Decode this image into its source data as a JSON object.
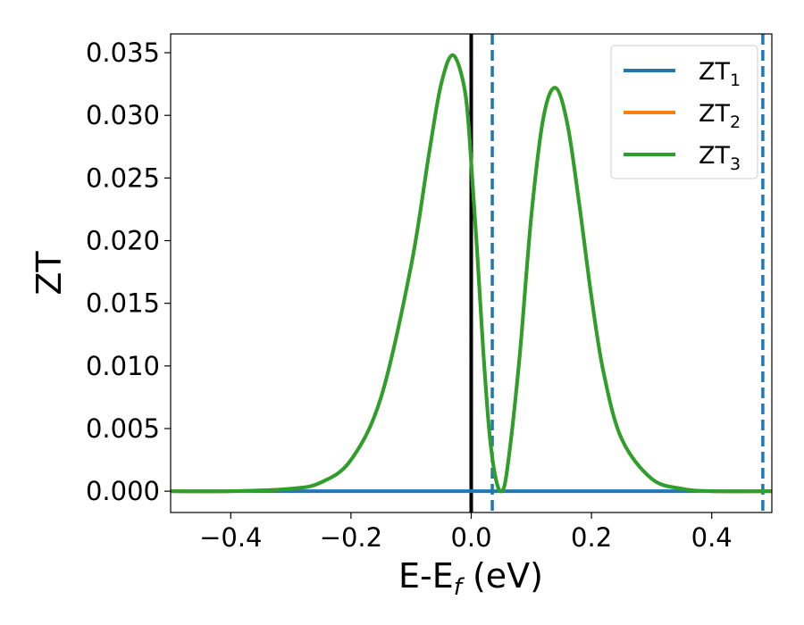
{
  "chart_data": {
    "type": "line",
    "xlabel": "E-E",
    "xlabel_sub": "f",
    "xlabel_unit": " (eV)",
    "ylabel": "ZT",
    "xlim": [
      -0.5,
      0.5
    ],
    "ylim": [
      -0.0017,
      0.0365
    ],
    "x_ticks": [
      -0.4,
      -0.2,
      0.0,
      0.2,
      0.4
    ],
    "x_tick_labels": [
      "−0.4",
      "−0.2",
      "0.0",
      "0.2",
      "0.4"
    ],
    "y_ticks": [
      0.0,
      0.005,
      0.01,
      0.015,
      0.02,
      0.025,
      0.03,
      0.035
    ],
    "y_tick_labels": [
      "0.000",
      "0.005",
      "0.010",
      "0.015",
      "0.020",
      "0.025",
      "0.030",
      "0.035"
    ],
    "grid": false,
    "legend_position": "top-right",
    "vertical_lines": [
      {
        "x": 0.0,
        "style": "solid",
        "color": "#000000"
      },
      {
        "x": 0.035,
        "style": "dashed",
        "color": "#1f77b4"
      },
      {
        "x": 0.485,
        "style": "dashed",
        "color": "#1f77b4"
      }
    ],
    "series": [
      {
        "name": "ZT",
        "name_sub": "1",
        "color": "#1f77b4",
        "x": [
          -0.5,
          0.5
        ],
        "y": [
          0.0,
          0.0
        ]
      },
      {
        "name": "ZT",
        "name_sub": "2",
        "color": "#ff7f0e",
        "x": [
          -0.5,
          -0.4,
          -0.3,
          -0.25,
          -0.2,
          -0.15,
          -0.1,
          -0.07,
          -0.05,
          -0.03,
          -0.01,
          0.0,
          0.01,
          0.02,
          0.03,
          0.04,
          0.05,
          0.06,
          0.08,
          0.1,
          0.12,
          0.14,
          0.16,
          0.18,
          0.2,
          0.22,
          0.25,
          0.3,
          0.35,
          0.4,
          0.5
        ],
        "y": [
          0.0,
          0.0,
          0.0002,
          0.0007,
          0.0025,
          0.0075,
          0.018,
          0.027,
          0.0325,
          0.0348,
          0.0318,
          0.0262,
          0.019,
          0.0112,
          0.0048,
          0.0012,
          0.0,
          0.0018,
          0.0105,
          0.022,
          0.0298,
          0.0322,
          0.0293,
          0.0228,
          0.0155,
          0.0095,
          0.0042,
          0.001,
          0.0002,
          0.0,
          0.0
        ]
      },
      {
        "name": "ZT",
        "name_sub": "3",
        "color": "#2ca02c",
        "x": [
          -0.5,
          -0.4,
          -0.3,
          -0.25,
          -0.2,
          -0.15,
          -0.1,
          -0.07,
          -0.05,
          -0.03,
          -0.01,
          0.0,
          0.01,
          0.02,
          0.03,
          0.04,
          0.05,
          0.06,
          0.08,
          0.1,
          0.12,
          0.14,
          0.16,
          0.18,
          0.2,
          0.22,
          0.25,
          0.3,
          0.35,
          0.4,
          0.5
        ],
        "y": [
          0.0,
          0.0,
          0.0002,
          0.0007,
          0.0025,
          0.0075,
          0.018,
          0.027,
          0.0325,
          0.0348,
          0.0318,
          0.0262,
          0.019,
          0.0112,
          0.0048,
          0.0012,
          0.0,
          0.0018,
          0.0105,
          0.022,
          0.0298,
          0.0322,
          0.0293,
          0.0228,
          0.0155,
          0.0095,
          0.0042,
          0.001,
          0.0002,
          0.0,
          0.0
        ]
      }
    ]
  }
}
